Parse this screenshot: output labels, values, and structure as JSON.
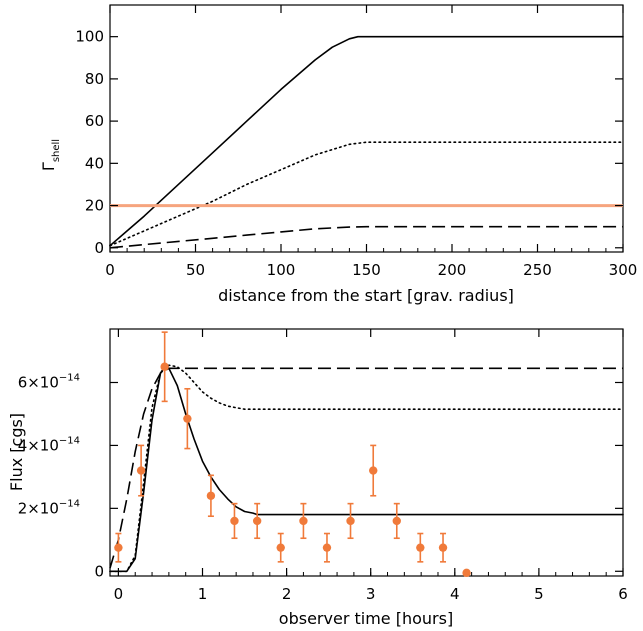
{
  "chart_data": [
    {
      "type": "line",
      "ylabel_main": "Γ",
      "ylabel_sub": "shell",
      "xlabel": "distance from the start [grav. radius]",
      "xlim": [
        0,
        300
      ],
      "ylim": [
        -2,
        115
      ],
      "xticks": [
        0,
        50,
        100,
        150,
        200,
        250,
        300
      ],
      "yticks": [
        0,
        20,
        40,
        60,
        80,
        100
      ],
      "series": [
        {
          "style": "solid",
          "color": "#000000",
          "x": [
            0,
            10,
            20,
            40,
            60,
            80,
            100,
            120,
            130,
            140,
            145,
            150,
            200,
            250,
            300
          ],
          "y": [
            1,
            8,
            15,
            30,
            45,
            60,
            75,
            89,
            95,
            99,
            100,
            100,
            100,
            100,
            100
          ]
        },
        {
          "style": "dotted",
          "color": "#000000",
          "x": [
            0,
            20,
            40,
            60,
            80,
            100,
            120,
            140,
            150,
            200,
            250,
            300
          ],
          "y": [
            1,
            8,
            15,
            22,
            30,
            37,
            44,
            49,
            50,
            50,
            50,
            50
          ]
        },
        {
          "style": "dashed",
          "color": "#000000",
          "x": [
            0,
            20,
            40,
            60,
            80,
            100,
            120,
            140,
            150,
            200,
            250,
            300
          ],
          "y": [
            0,
            1.5,
            3,
            4.5,
            6,
            7.5,
            9,
            9.8,
            10,
            10,
            10,
            10
          ]
        },
        {
          "style": "solid-thick",
          "color": "#F6A47E",
          "x": [
            0,
            300
          ],
          "y": [
            20,
            20
          ]
        }
      ]
    },
    {
      "type": "line",
      "ylabel": "Flux [cgs]",
      "xlabel": "observer time [hours]",
      "xlim": [
        -0.1,
        6
      ],
      "ylim": [
        -0.15,
        7.7
      ],
      "y_scale_label": "×10^-14",
      "xticks": [
        0,
        1,
        2,
        3,
        4,
        5,
        6
      ],
      "yticks": [
        {
          "value": 0,
          "label": "0"
        },
        {
          "value": 2,
          "label": "2×10",
          "exp": "−14"
        },
        {
          "value": 4,
          "label": "4×10",
          "exp": "−14"
        },
        {
          "value": 6,
          "label": "6×10",
          "exp": "−14"
        }
      ],
      "series": [
        {
          "style": "solid",
          "color": "#000000",
          "x": [
            -0.1,
            0.1,
            0.2,
            0.3,
            0.4,
            0.5,
            0.55,
            0.6,
            0.7,
            0.8,
            0.9,
            1.0,
            1.1,
            1.2,
            1.3,
            1.4,
            1.5,
            1.6,
            1.65,
            2,
            3,
            4,
            5,
            6
          ],
          "y": [
            0,
            0,
            0.4,
            2.5,
            4.8,
            6.3,
            6.5,
            6.45,
            5.9,
            5.0,
            4.2,
            3.5,
            3.0,
            2.6,
            2.3,
            2.05,
            1.9,
            1.85,
            1.8,
            1.8,
            1.8,
            1.8,
            1.8,
            1.8
          ]
        },
        {
          "style": "dotted",
          "color": "#000000",
          "x": [
            -0.1,
            0.1,
            0.2,
            0.3,
            0.4,
            0.5,
            0.6,
            0.7,
            0.8,
            0.9,
            1.0,
            1.1,
            1.2,
            1.3,
            1.4,
            1.5,
            1.6,
            2,
            3,
            4,
            5,
            6
          ],
          "y": [
            0,
            0,
            0.5,
            2.8,
            5.2,
            6.3,
            6.55,
            6.5,
            6.3,
            6.0,
            5.7,
            5.5,
            5.35,
            5.25,
            5.2,
            5.15,
            5.15,
            5.15,
            5.15,
            5.15,
            5.15,
            5.15
          ]
        },
        {
          "style": "dashed",
          "color": "#000000",
          "x": [
            -0.1,
            0.0,
            0.1,
            0.2,
            0.3,
            0.4,
            0.5,
            0.6,
            0.7,
            1,
            2,
            3,
            4,
            5,
            6
          ],
          "y": [
            0.1,
            1.0,
            2.3,
            3.8,
            5.0,
            5.8,
            6.3,
            6.45,
            6.45,
            6.45,
            6.45,
            6.45,
            6.45,
            6.45,
            6.45
          ]
        }
      ],
      "points": {
        "color": "#F07A3A",
        "x": [
          0.0,
          0.27,
          0.55,
          0.82,
          1.1,
          1.38,
          1.65,
          1.93,
          2.2,
          2.48,
          2.76,
          3.03,
          3.31,
          3.59,
          3.86,
          4.14
        ],
        "y": [
          0.75,
          3.2,
          6.5,
          4.85,
          2.4,
          1.6,
          1.6,
          0.75,
          1.6,
          0.75,
          1.6,
          3.2,
          1.6,
          0.75,
          0.75,
          -0.05
        ],
        "yerr": [
          0.45,
          0.8,
          1.1,
          0.95,
          0.65,
          0.55,
          0.55,
          0.45,
          0.55,
          0.45,
          0.55,
          0.8,
          0.55,
          0.45,
          0.45,
          0.0
        ]
      }
    }
  ]
}
